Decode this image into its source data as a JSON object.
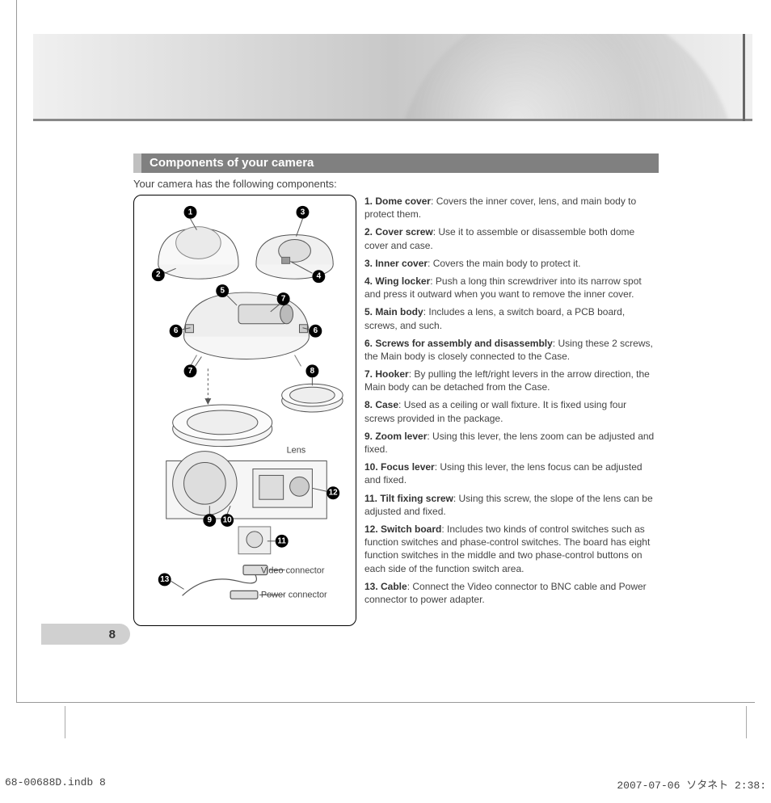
{
  "section_title": "Components of your camera",
  "intro_text": "Your camera has the following components:",
  "page_number": "8",
  "footer_left": "68-00688D.indb   8",
  "footer_right": "2007-07-06   ソタネト 2:38:",
  "diagram": {
    "label_lens": "Lens",
    "label_video": "Video connector",
    "label_power": "Power connector",
    "callouts": [
      "1",
      "2",
      "3",
      "4",
      "5",
      "6",
      "7",
      "8",
      "9",
      "10",
      "11",
      "12",
      "13"
    ]
  },
  "components": [
    {
      "num": "1.",
      "name": "Dome cover",
      "desc": ": Covers the inner cover, lens, and main body to protect them."
    },
    {
      "num": "2.",
      "name": "Cover screw",
      "desc": ": Use it to assemble or disassemble both dome cover and case."
    },
    {
      "num": "3.",
      "name": "Inner cover",
      "desc": ": Covers the main body to protect it."
    },
    {
      "num": "4.",
      "name": "Wing locker",
      "desc": ": Push a long thin screwdriver into its narrow spot and press it outward when you want to remove the inner cover."
    },
    {
      "num": "5.",
      "name": "Main body",
      "desc": ": Includes a lens, a switch board, a PCB board, screws, and such."
    },
    {
      "num": "6.",
      "name": "Screws for assembly and disassembly",
      "desc": ": Using these 2 screws, the Main body is closely connected to the Case."
    },
    {
      "num": "7.",
      "name": "Hooker",
      "desc": ": By pulling the left/right levers in the arrow direction, the Main body can be detached from the Case."
    },
    {
      "num": "8.",
      "name": "Case",
      "desc": ": Used as a ceiling or wall fixture. It is fixed using four screws provided in the package."
    },
    {
      "num": "9.",
      "name": "Zoom lever",
      "desc": ": Using this lever, the lens zoom can be adjusted and fixed."
    },
    {
      "num": "10.",
      "name": "Focus lever",
      "desc": ": Using this lever, the lens focus can be adjusted and fixed."
    },
    {
      "num": "11.",
      "name": "Tilt fixing screw",
      "desc": ": Using this screw, the slope of the lens can be adjusted and fixed."
    },
    {
      "num": "12.",
      "name": "Switch board",
      "desc": ": Includes two kinds of control switches such as function switches and phase-control switches. The board has eight function switches in the middle and two phase-control buttons on each side of the function switch area."
    },
    {
      "num": "13.",
      "name": "Cable",
      "desc": ": Connect the Video connector to BNC cable and Power connector to power adapter."
    }
  ],
  "colors": {
    "section_bg": "#808080",
    "section_accent": "#c0c0c0",
    "text": "#444444",
    "border": "#000000"
  }
}
